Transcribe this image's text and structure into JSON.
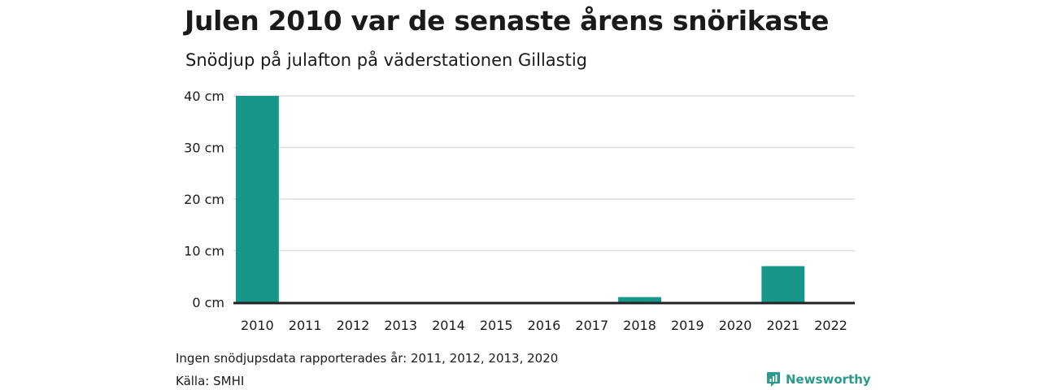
{
  "title": "Julen 2010 var de senaste årens snörikaste",
  "subtitle": "Snödjup på julafton på väderstationen Gillastig",
  "note": "Ingen snödjupsdata rapporterades år: 2011, 2012, 2013, 2020",
  "source": "Källa: SMHI",
  "brand": "Newsworthy",
  "colors": {
    "bar": "#16978a",
    "grid": "#dddddd",
    "baseline": "#222222",
    "brand": "#2b9a8a"
  },
  "chart_data": {
    "type": "bar",
    "categories": [
      "2010",
      "2011",
      "2012",
      "2013",
      "2014",
      "2015",
      "2016",
      "2017",
      "2018",
      "2019",
      "2020",
      "2021",
      "2022"
    ],
    "values": [
      40,
      null,
      null,
      null,
      0,
      0,
      0,
      0,
      1,
      0,
      null,
      7,
      0
    ],
    "yticks": [
      0,
      10,
      20,
      30,
      40
    ],
    "ytick_labels": [
      "0 cm",
      "10 cm",
      "20 cm",
      "30 cm",
      "40 cm"
    ],
    "ylim": [
      0,
      40
    ],
    "grid": true,
    "legend": "none"
  }
}
